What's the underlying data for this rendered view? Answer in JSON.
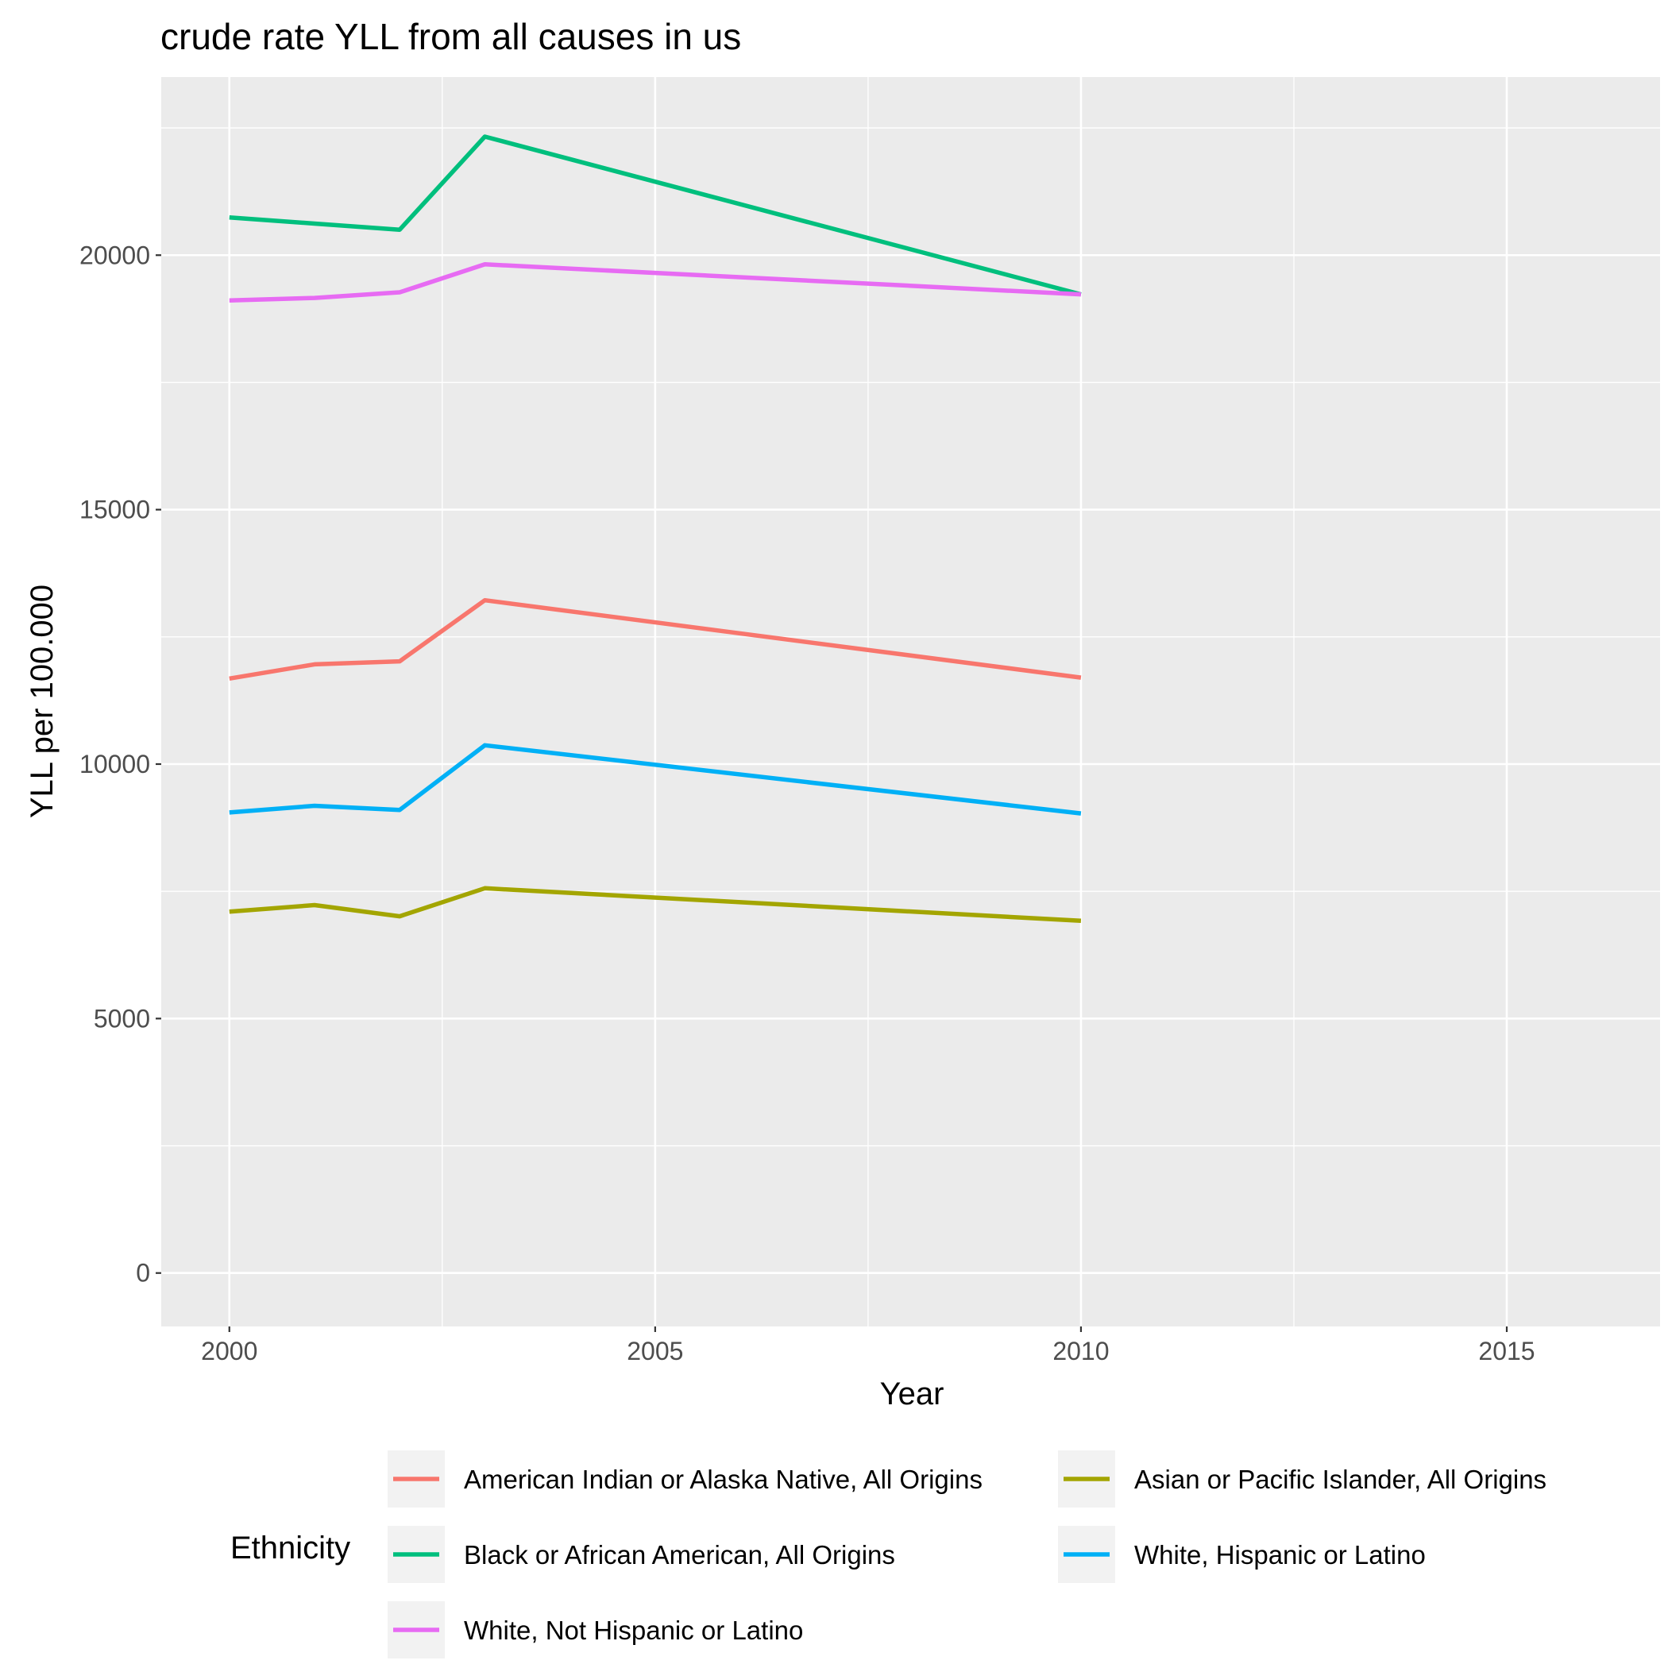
{
  "chart_data": {
    "type": "line",
    "title": "crude rate YLL from all causes in us",
    "xlabel": "Year",
    "ylabel": "YLL per 100.000",
    "xlim": [
      1999.2,
      2016.8
    ],
    "ylim": [
      -1050,
      23500
    ],
    "x_ticks": [
      2000,
      2005,
      2010,
      2015
    ],
    "y_ticks": [
      0,
      5000,
      10000,
      15000,
      20000
    ],
    "grid": true,
    "legend_title": "Ethnicity",
    "legend_position": "bottom",
    "series": [
      {
        "name": "American Indian or Alaska Native, All Origins",
        "color": "#F8766D",
        "x": [
          2000,
          2001,
          2002,
          2003,
          2010
        ],
        "values": [
          11680,
          11960,
          12020,
          13220,
          11700
        ]
      },
      {
        "name": "Asian or Pacific Islander, All Origins",
        "color": "#A3A500",
        "x": [
          2000,
          2001,
          2002,
          2003,
          2010
        ],
        "values": [
          7100,
          7230,
          7010,
          7560,
          6920
        ]
      },
      {
        "name": "Black or African American, All Origins",
        "color": "#00BF7D",
        "x": [
          2000,
          2001,
          2002,
          2003,
          2010
        ],
        "values": [
          20740,
          20620,
          20500,
          22330,
          19230
        ]
      },
      {
        "name": "White, Hispanic or Latino",
        "color": "#00B0F6",
        "x": [
          2000,
          2001,
          2002,
          2003,
          2010
        ],
        "values": [
          9050,
          9180,
          9100,
          10370,
          9030
        ]
      },
      {
        "name": "White, Not Hispanic or Latino",
        "color": "#E76BF3",
        "x": [
          2000,
          2001,
          2002,
          2003,
          2010
        ],
        "values": [
          19110,
          19160,
          19270,
          19820,
          19230
        ]
      }
    ]
  }
}
